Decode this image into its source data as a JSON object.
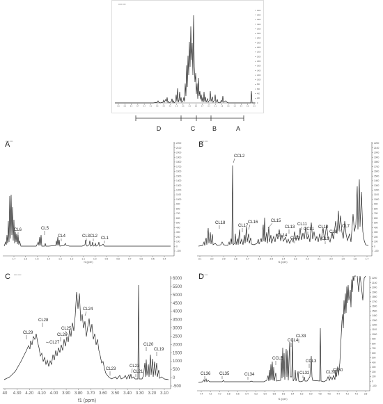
{
  "top": {
    "region_labels": [
      "D",
      "C",
      "B",
      "A"
    ],
    "y_ticks": [
      "4000",
      "3800",
      "3600",
      "3400",
      "3200",
      "3000",
      "2800",
      "2600",
      "2400",
      "2200",
      "2000",
      "1800",
      "1600",
      "1400",
      "1200",
      "1000",
      "800",
      "600",
      "400",
      "200",
      "0"
    ],
    "x_ticks": [
      "6.6",
      "6.3",
      "6.0",
      "5.7",
      "5.4",
      "5.1",
      "4.8",
      "4.5",
      "4.2",
      "3.9",
      "3.6",
      "3.3",
      "3.0",
      "2.7",
      "2.4",
      "2.1",
      "1.8",
      "1.5",
      "1.2",
      "0.9",
      "0.6",
      "0.3"
    ]
  },
  "panels": [
    {
      "id": "A",
      "label": "A",
      "y_ticks": [
        "2200",
        "2100",
        "2000",
        "1900",
        "1800",
        "1700",
        "1600",
        "1500",
        "1400",
        "1300",
        "1200",
        "1100",
        "1000",
        "900",
        "800",
        "700",
        "600",
        "500",
        "400",
        "300",
        "200",
        "100",
        "0",
        "-100"
      ],
      "x_ticks": [
        "1.7",
        "1.6",
        "1.5",
        "1.4",
        "1.3",
        "1.2",
        "1.1",
        "1.0",
        "0.9",
        "0.8",
        "0.7",
        "0.6",
        "0.5",
        "0.4"
      ],
      "xlabel": "f1 (ppm)",
      "annotations": [
        "CL6",
        "CL5",
        "CL4",
        "CL3",
        "CL2",
        "CL1"
      ]
    },
    {
      "id": "B",
      "label": "B",
      "y_ticks": [
        "2200",
        "2100",
        "2000",
        "1900",
        "1800",
        "1700",
        "1600",
        "1500",
        "1400",
        "1300",
        "1200",
        "1100",
        "1000",
        "900",
        "800",
        "700",
        "600",
        "500",
        "400",
        "300",
        "200",
        "100",
        "0",
        "-100"
      ],
      "x_ticks": [
        "3.1",
        "3.0",
        "2.9",
        "2.8",
        "2.7",
        "2.6",
        "2.5",
        "2.4",
        "2.3",
        "2.2",
        "2.1",
        "2.0",
        "1.9",
        "1.8",
        "1.7"
      ],
      "xlabel": "f1 (ppm)",
      "annotations": [
        "CCL2",
        "CL18",
        "CL17",
        "CL16",
        "CL15",
        "CL14",
        "CL13",
        "CL12",
        "CL11",
        "CCL1",
        "CL10",
        "CL9",
        "CL8",
        "CL7"
      ]
    },
    {
      "id": "C",
      "label": "C",
      "y_ticks": [
        "6000",
        "5500",
        "5000",
        "4500",
        "4000",
        "3500",
        "3000",
        "2500",
        "2000",
        "1500",
        "1000",
        "500",
        "0",
        "-500"
      ],
      "x_ticks": [
        "40",
        "4.30",
        "4.20",
        "4.10",
        "4.00",
        "3.90",
        "3.80",
        "3.70",
        "3.60",
        "3.50",
        "3.40",
        "3.30",
        "3.20",
        "3.10"
      ],
      "xlabel": "f1 (ppm)",
      "annotations": [
        "CL29",
        "CL28",
        "CL27",
        "CL26",
        "CL25",
        "CL24",
        "CL23",
        "CL22",
        "CL21",
        "CL20",
        "CL19"
      ]
    },
    {
      "id": "D",
      "label": "D",
      "y_ticks": [
        "2200",
        "2100",
        "2000",
        "1900",
        "1800",
        "1700",
        "1600",
        "1500",
        "1400",
        "1300",
        "1200",
        "1100",
        "1000",
        "900",
        "800",
        "700",
        "600",
        "500",
        "400",
        "300",
        "200",
        "100",
        "0",
        "-100"
      ],
      "x_ticks": [
        "7.4",
        "7.2",
        "7.0",
        "6.8",
        "6.6",
        "6.4",
        "6.2",
        "6.0",
        "5.8",
        "5.6",
        "5.4",
        "5.2",
        "5.0",
        "4.8",
        "4.6",
        "4.4",
        "4.2",
        "4.0",
        "3.8"
      ],
      "xlabel": "f1 (ppm)",
      "annotations": [
        "CL36",
        "CL35",
        "CL34",
        "CCL5",
        "CCL4",
        "CL33",
        "CCL3",
        "CL32",
        "CL31",
        "CL30"
      ]
    }
  ]
}
